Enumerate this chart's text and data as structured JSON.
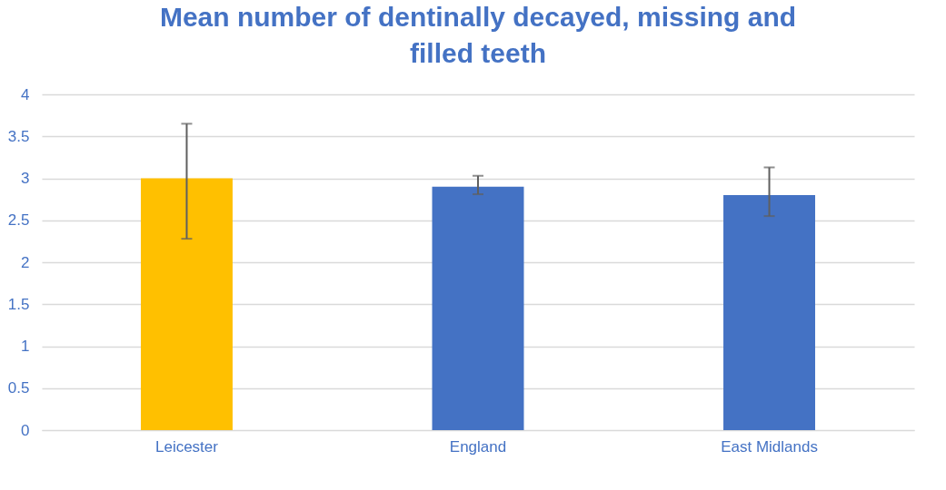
{
  "chart_data": {
    "type": "bar",
    "title": "Mean number of dentinally decayed, missing and filled teeth",
    "categories": [
      "Leicester",
      "England",
      "East Midlands"
    ],
    "values": [
      3.0,
      2.9,
      2.8
    ],
    "colors": [
      "#ffc000",
      "#4472c4",
      "#4472c4"
    ],
    "errors": [
      [
        2.28,
        3.65
      ],
      [
        2.81,
        3.03
      ],
      [
        2.55,
        3.13
      ]
    ],
    "ylim": [
      0,
      4
    ],
    "yticks": [
      0,
      0.5,
      1,
      1.5,
      2,
      2.5,
      3,
      3.5,
      4
    ],
    "grid": "y"
  }
}
